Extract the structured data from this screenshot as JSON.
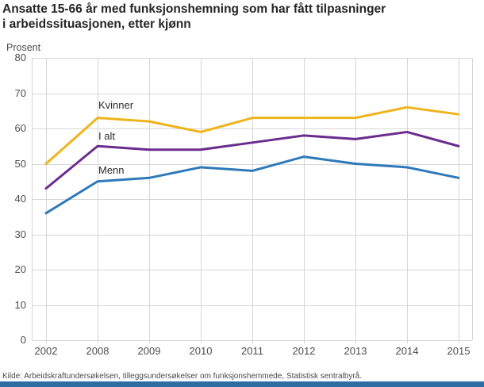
{
  "title": {
    "line1": "Ansatte 15-66 år med funksjonshemning som har fått tilpasninger",
    "line2": "i arbeidssituasjonen, etter kjønn"
  },
  "source": "Kilde: Arbeidskraftundersøkelsen, tilleggsundersøkelser om funksjonshemmede, Statistisk sentralbyrå.",
  "colors": {
    "kvinner_line": "#efb31c",
    "i_alt_line": "#6a2d8f",
    "menn_line": "#2e79b9",
    "gridline": "#d6d6d6",
    "footer_bar": "#2e6da4"
  },
  "chart_data": {
    "type": "line",
    "title": "Ansatte 15-66 år med funksjonshemning som har fått tilpasninger i arbeidssituasjonen, etter kjønn",
    "ylabel": "Prosent",
    "xlabel": "",
    "categories": [
      "2002",
      "2008",
      "2009",
      "2010",
      "2011",
      "2012",
      "2013",
      "2014",
      "2015"
    ],
    "series": [
      {
        "name": "Kvinner",
        "color": "#efb31c",
        "values": [
          50,
          63,
          62,
          59,
          63,
          63,
          63,
          66,
          64
        ]
      },
      {
        "name": "I alt",
        "color": "#6a2d8f",
        "values": [
          43,
          55,
          54,
          54,
          56,
          58,
          57,
          59,
          55
        ]
      },
      {
        "name": "Menn",
        "color": "#2e79b9",
        "values": [
          36,
          45,
          46,
          49,
          48,
          52,
          50,
          49,
          46
        ]
      }
    ],
    "ylim": [
      0,
      80
    ],
    "y_ticks": [
      0,
      10,
      20,
      30,
      40,
      50,
      60,
      70,
      80
    ],
    "grid": true,
    "legend_position": "inline-labels-near-2008"
  }
}
